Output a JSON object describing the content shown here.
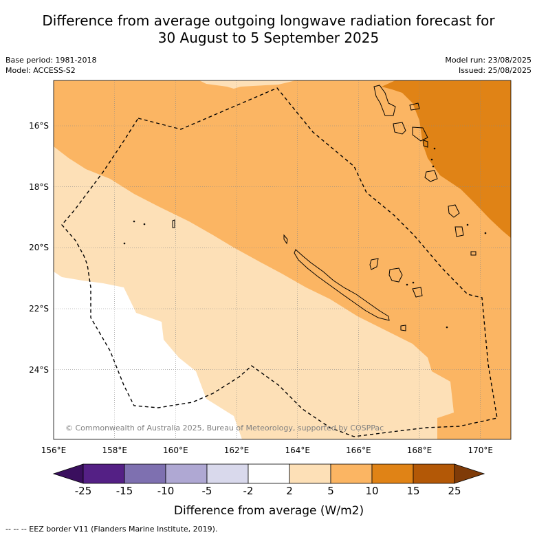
{
  "title_line1": "Difference from average outgoing longwave radiation forecast for",
  "title_line2": "30 August to 5 September 2025",
  "base_period": "Base period: 1981-2018",
  "model": "Model: ACCESS-S2",
  "model_run": "Model run: 23/08/2025",
  "issued": "Issued: 25/08/2025",
  "copyright": "© Commonwealth of Australia 2025, Bureau of Meteorology, supported by COSPPac",
  "lon_ticks": [
    "156°E",
    "158°E",
    "160°E",
    "162°E",
    "164°E",
    "166°E",
    "168°E",
    "170°E"
  ],
  "lat_ticks": [
    "16°S",
    "18°S",
    "20°S",
    "22°S",
    "24°S"
  ],
  "colorbar": {
    "label": "Difference from average (W/m2)",
    "ticks": [
      "-25",
      "-15",
      "-10",
      "-5",
      "-2",
      "2",
      "5",
      "10",
      "15",
      "25"
    ],
    "colors": [
      "#3a0f5e",
      "#542085",
      "#7e70b0",
      "#afa8d3",
      "#d9d9ec",
      "#ffffff",
      "#fde0b7",
      "#fbb563",
      "#e08316",
      "#b35806",
      "#7f3b08"
    ]
  },
  "footnote": "--  --  -- EEZ border V11 (Flanders Marine Institute, 2019)."
}
